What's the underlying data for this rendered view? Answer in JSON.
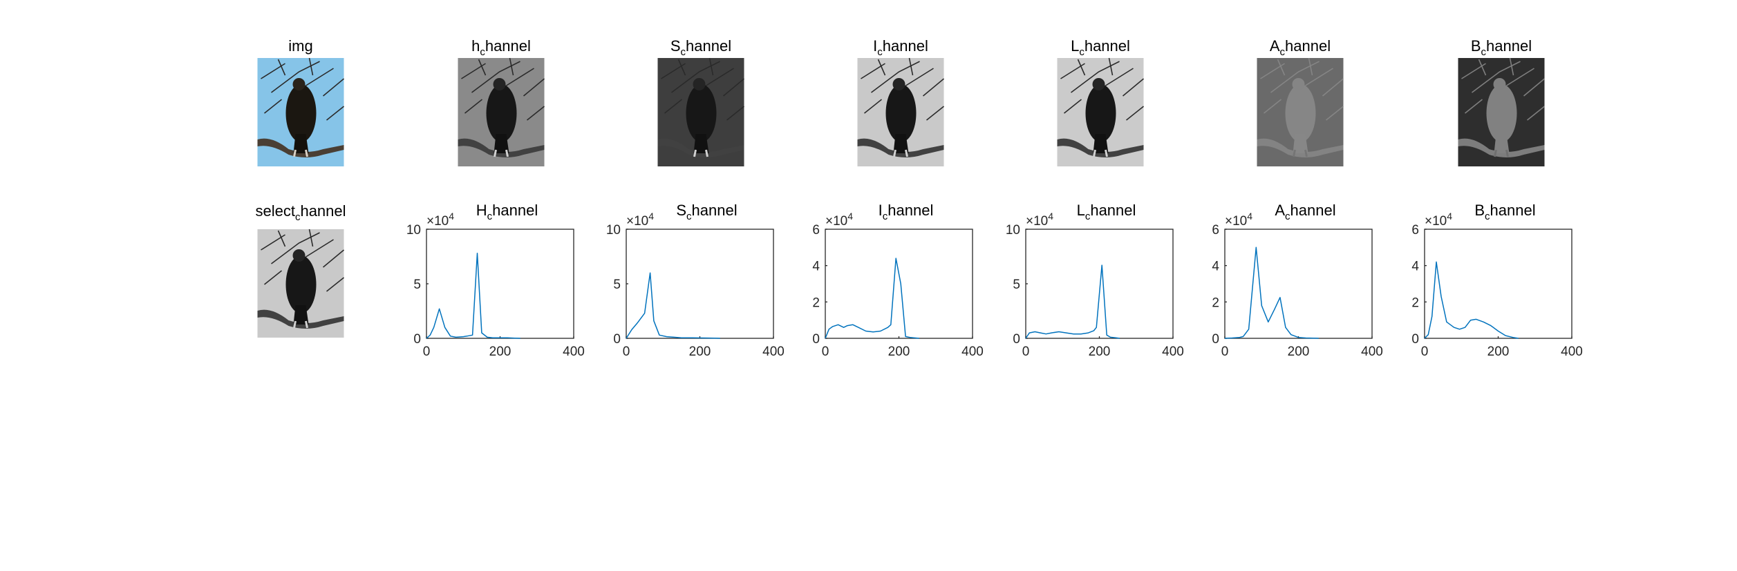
{
  "images": [
    {
      "name": "img",
      "title": {
        "main": "img",
        "sub": "",
        "rest": ""
      },
      "kind": "color-bird",
      "shade": "#86c4e8"
    },
    {
      "name": "h-channel",
      "title": {
        "main": "h",
        "sub": "c",
        "rest": "hannel"
      },
      "kind": "gray-bird",
      "shade": "#8a8a8a"
    },
    {
      "name": "s-channel",
      "title": {
        "main": "S",
        "sub": "c",
        "rest": "hannel"
      },
      "kind": "gray-bird",
      "shade": "#3e3e3e"
    },
    {
      "name": "i-channel",
      "title": {
        "main": "I",
        "sub": "c",
        "rest": "hannel"
      },
      "kind": "gray-bird",
      "shade": "#c9c9c9"
    },
    {
      "name": "l-channel",
      "title": {
        "main": "L",
        "sub": "c",
        "rest": "hannel"
      },
      "kind": "gray-bird",
      "shade": "#cbcbcb"
    },
    {
      "name": "a-channel",
      "title": {
        "main": "A",
        "sub": "c",
        "rest": "hannel"
      },
      "kind": "gray-bird-light",
      "shade": "#6a6a6a"
    },
    {
      "name": "b-channel",
      "title": {
        "main": "B",
        "sub": "c",
        "rest": "hannel"
      },
      "kind": "gray-bird-light",
      "shade": "#2e2e2e"
    },
    {
      "name": "select-channel",
      "title": {
        "main": "select",
        "sub": "c",
        "rest": "hannel"
      },
      "kind": "gray-bird",
      "shade": "#c9c9c9"
    }
  ],
  "chart_data": [
    {
      "type": "line",
      "title": {
        "main": "H",
        "sub": "c",
        "rest": "hannel"
      },
      "xlim": [
        0,
        400
      ],
      "ylim": [
        0,
        10
      ],
      "xticks": [
        0,
        200,
        400
      ],
      "yticks": [
        0,
        5,
        10
      ],
      "multiplier": {
        "base": "×10",
        "exp": "4"
      },
      "x": [
        0,
        10,
        20,
        35,
        50,
        65,
        80,
        100,
        110,
        125,
        138,
        150,
        165,
        180,
        200,
        220,
        240,
        255
      ],
      "y": [
        0,
        0.3,
        1.0,
        2.7,
        1.0,
        0.2,
        0.1,
        0.15,
        0.2,
        0.3,
        7.8,
        0.5,
        0.1,
        0.05,
        0.05,
        0.05,
        0.02,
        0
      ]
    },
    {
      "type": "line",
      "title": {
        "main": "S",
        "sub": "c",
        "rest": "hannel"
      },
      "xlim": [
        0,
        400
      ],
      "ylim": [
        0,
        10
      ],
      "xticks": [
        0,
        200,
        400
      ],
      "yticks": [
        0,
        5,
        10
      ],
      "multiplier": {
        "base": "×10",
        "exp": "4"
      },
      "x": [
        0,
        15,
        30,
        50,
        65,
        75,
        90,
        110,
        130,
        150,
        180,
        210,
        240,
        255
      ],
      "y": [
        0,
        0.8,
        1.4,
        2.3,
        6.0,
        1.6,
        0.3,
        0.15,
        0.1,
        0.05,
        0.05,
        0.03,
        0.02,
        0
      ]
    },
    {
      "type": "line",
      "title": {
        "main": "I",
        "sub": "c",
        "rest": "hannel"
      },
      "xlim": [
        0,
        400
      ],
      "ylim": [
        0,
        6
      ],
      "xticks": [
        0,
        200,
        400
      ],
      "yticks": [
        0,
        2,
        4,
        6
      ],
      "multiplier": {
        "base": "×10",
        "exp": "4"
      },
      "x": [
        0,
        10,
        20,
        35,
        50,
        60,
        75,
        90,
        110,
        130,
        150,
        170,
        178,
        192,
        205,
        218,
        230,
        245,
        255
      ],
      "y": [
        0,
        0.5,
        0.65,
        0.75,
        0.6,
        0.7,
        0.75,
        0.6,
        0.4,
        0.35,
        0.4,
        0.6,
        0.75,
        4.4,
        3.0,
        0.1,
        0.05,
        0.02,
        0
      ]
    },
    {
      "type": "line",
      "title": {
        "main": "L",
        "sub": "c",
        "rest": "hannel"
      },
      "xlim": [
        0,
        400
      ],
      "ylim": [
        0,
        10
      ],
      "xticks": [
        0,
        200,
        400
      ],
      "yticks": [
        0,
        5,
        10
      ],
      "multiplier": {
        "base": "×10",
        "exp": "4"
      },
      "x": [
        0,
        10,
        25,
        40,
        55,
        70,
        90,
        110,
        130,
        150,
        170,
        185,
        192,
        207,
        220,
        230,
        245,
        255
      ],
      "y": [
        0,
        0.5,
        0.6,
        0.5,
        0.4,
        0.5,
        0.6,
        0.5,
        0.4,
        0.4,
        0.5,
        0.7,
        1.0,
        6.7,
        0.3,
        0.1,
        0.05,
        0
      ]
    },
    {
      "type": "line",
      "title": {
        "main": "A",
        "sub": "c",
        "rest": "hannel"
      },
      "xlim": [
        0,
        400
      ],
      "ylim": [
        0,
        6
      ],
      "xticks": [
        0,
        200,
        400
      ],
      "yticks": [
        0,
        2,
        4,
        6
      ],
      "multiplier": {
        "base": "×10",
        "exp": "4"
      },
      "x": [
        0,
        20,
        40,
        50,
        65,
        85,
        100,
        118,
        135,
        150,
        165,
        180,
        200,
        220,
        240,
        255
      ],
      "y": [
        0,
        0.02,
        0.05,
        0.1,
        0.5,
        5.0,
        1.8,
        0.9,
        1.6,
        2.25,
        0.6,
        0.2,
        0.05,
        0.02,
        0.01,
        0
      ]
    },
    {
      "type": "line",
      "title": {
        "main": "B",
        "sub": "c",
        "rest": "hannel"
      },
      "xlim": [
        0,
        400
      ],
      "ylim": [
        0,
        6
      ],
      "xticks": [
        0,
        200,
        400
      ],
      "yticks": [
        0,
        2,
        4,
        6
      ],
      "multiplier": {
        "base": "×10",
        "exp": "4"
      },
      "x": [
        0,
        10,
        20,
        32,
        45,
        60,
        80,
        95,
        110,
        125,
        140,
        160,
        180,
        200,
        220,
        240,
        255
      ],
      "y": [
        0,
        0.2,
        1.2,
        4.2,
        2.3,
        0.9,
        0.6,
        0.5,
        0.6,
        1.0,
        1.05,
        0.9,
        0.7,
        0.4,
        0.15,
        0.05,
        0
      ]
    }
  ]
}
